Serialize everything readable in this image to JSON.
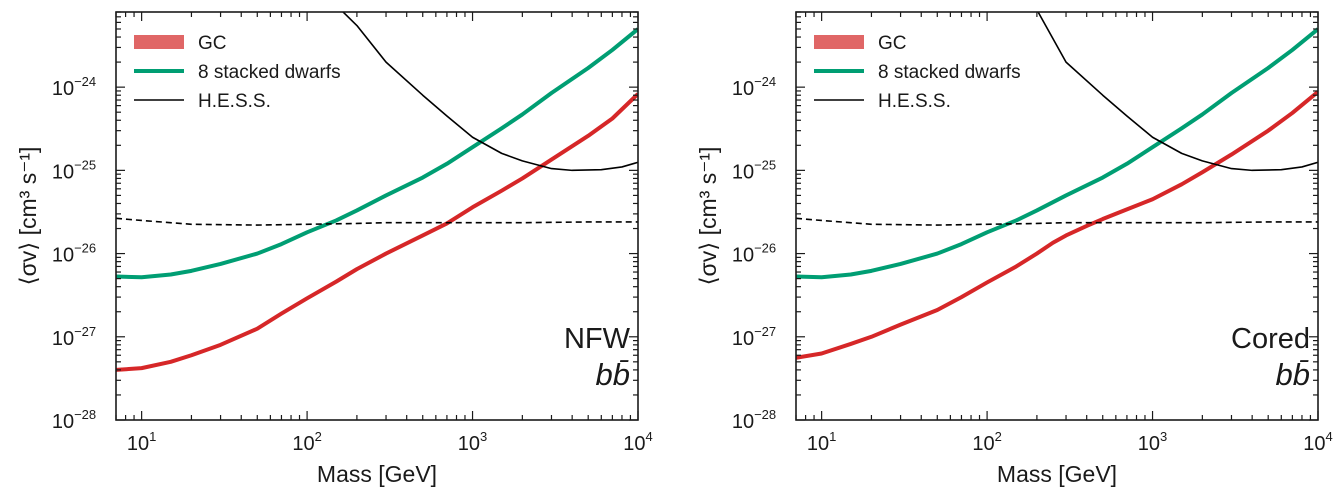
{
  "chart_data": [
    {
      "type": "line",
      "xlabel": "Mass [GeV]",
      "ylabel": "⟨σv⟩ [cm³ s⁻¹]",
      "xscale": "log",
      "yscale": "log",
      "xlim": [
        7,
        10000
      ],
      "ylim": [
        1e-28,
        8e-24
      ],
      "x_ticks": [
        "10^1",
        "10^2",
        "10^3",
        "10^4"
      ],
      "y_ticks": [
        "10^-28",
        "10^-27",
        "10^-26",
        "10^-25",
        "10^-24"
      ],
      "annotation": "NFW",
      "annotation2": "bb̄",
      "legend_position": "top-left",
      "series": [
        {
          "name": "GC",
          "color": "#d62728",
          "legend_color": "#e06666",
          "x": [
            7,
            10,
            15,
            20,
            30,
            50,
            70,
            100,
            150,
            200,
            300,
            500,
            700,
            1000,
            1500,
            2000,
            3000,
            5000,
            7000,
            10000
          ],
          "y": [
            4e-28,
            4.2e-28,
            5e-28,
            6e-28,
            8e-28,
            1.25e-27,
            1.9e-27,
            2.9e-27,
            4.6e-27,
            6.5e-27,
            1e-26,
            1.65e-26,
            2.3e-26,
            3.6e-26,
            5.7e-26,
            8e-26,
            1.35e-25,
            2.6e-25,
            4.2e-25,
            8.3e-25
          ]
        },
        {
          "name": "8 stacked dwarfs",
          "color": "#009e73",
          "x": [
            7,
            10,
            15,
            20,
            30,
            50,
            70,
            100,
            150,
            200,
            300,
            500,
            700,
            1000,
            1500,
            2000,
            3000,
            5000,
            7000,
            10000
          ],
          "y": [
            5.3e-27,
            5.2e-27,
            5.6e-27,
            6.2e-27,
            7.5e-27,
            1e-26,
            1.3e-26,
            1.8e-26,
            2.5e-26,
            3.3e-26,
            5e-26,
            8.2e-26,
            1.2e-25,
            1.9e-25,
            3.2e-25,
            4.7e-25,
            8.5e-25,
            1.7e-24,
            2.8e-24,
            5e-24
          ]
        },
        {
          "name": "H.E.S.S.",
          "color": "#000000",
          "x": [
            160,
            200,
            300,
            500,
            700,
            1000,
            1500,
            2000,
            3000,
            4000,
            6000,
            8000,
            10000
          ],
          "y": [
            8.5e-24,
            5.5e-24,
            2e-24,
            8e-25,
            4.5e-25,
            2.5e-25,
            1.6e-25,
            1.3e-25,
            1.05e-25,
            1e-25,
            1.02e-25,
            1.1e-25,
            1.25e-25
          ]
        },
        {
          "color": "#000000",
          "dashed": true,
          "x": [
            7,
            10,
            20,
            50,
            100,
            200,
            300,
            500,
            1000,
            2000,
            5000,
            10000
          ],
          "y": [
            2.65e-26,
            2.5e-26,
            2.25e-26,
            2.2e-26,
            2.25e-26,
            2.3e-26,
            2.35e-26,
            2.35e-26,
            2.35e-26,
            2.35e-26,
            2.4e-26,
            2.4e-26
          ]
        }
      ]
    },
    {
      "type": "line",
      "xlabel": "Mass [GeV]",
      "ylabel": "⟨σv⟩ [cm³ s⁻¹]",
      "xscale": "log",
      "yscale": "log",
      "xlim": [
        7,
        10000
      ],
      "ylim": [
        1e-28,
        8e-24
      ],
      "x_ticks": [
        "10^1",
        "10^2",
        "10^3",
        "10^4"
      ],
      "y_ticks": [
        "10^-28",
        "10^-27",
        "10^-26",
        "10^-25",
        "10^-24"
      ],
      "annotation": "Cored",
      "annotation2": "bb̄",
      "legend_position": "top-left",
      "series": [
        {
          "name": "GC",
          "color": "#d62728",
          "legend_color": "#e06666",
          "x": [
            7,
            10,
            15,
            20,
            30,
            50,
            70,
            100,
            150,
            200,
            250,
            300,
            400,
            500,
            700,
            1000,
            1500,
            2000,
            3000,
            5000,
            7000,
            10000
          ],
          "y": [
            5.6e-28,
            6.3e-28,
            8.2e-28,
            1e-27,
            1.4e-27,
            2.1e-27,
            3e-27,
            4.5e-27,
            7e-27,
            1e-26,
            1.35e-26,
            1.65e-26,
            2.15e-26,
            2.6e-26,
            3.4e-26,
            4.5e-26,
            6.8e-26,
            9.5e-26,
            1.55e-25,
            3e-25,
            4.9e-25,
            8.8e-25
          ]
        },
        {
          "name": "8 stacked dwarfs",
          "color": "#009e73",
          "x": [
            7,
            10,
            15,
            20,
            30,
            50,
            70,
            100,
            150,
            200,
            300,
            500,
            700,
            1000,
            1500,
            2000,
            3000,
            5000,
            7000,
            10000
          ],
          "y": [
            5.3e-27,
            5.2e-27,
            5.6e-27,
            6.2e-27,
            7.5e-27,
            1e-26,
            1.3e-26,
            1.8e-26,
            2.5e-26,
            3.3e-26,
            5e-26,
            8.2e-26,
            1.2e-25,
            1.9e-25,
            3.2e-25,
            4.7e-25,
            8.5e-25,
            1.7e-24,
            2.8e-24,
            5e-24
          ]
        },
        {
          "name": "H.E.S.S.",
          "color": "#000000",
          "x": [
            200,
            300,
            500,
            700,
            1000,
            1500,
            2000,
            3000,
            4000,
            6000,
            8000,
            10000
          ],
          "y": [
            8.5e-24,
            2e-24,
            8e-25,
            4.5e-25,
            2.5e-25,
            1.6e-25,
            1.3e-25,
            1.05e-25,
            1e-25,
            1.02e-25,
            1.1e-25,
            1.25e-25
          ]
        },
        {
          "color": "#000000",
          "dashed": true,
          "x": [
            7,
            10,
            20,
            50,
            100,
            200,
            300,
            500,
            1000,
            2000,
            5000,
            10000
          ],
          "y": [
            2.65e-26,
            2.5e-26,
            2.25e-26,
            2.2e-26,
            2.25e-26,
            2.3e-26,
            2.35e-26,
            2.35e-26,
            2.35e-26,
            2.35e-26,
            2.4e-26,
            2.4e-26
          ]
        }
      ]
    }
  ]
}
